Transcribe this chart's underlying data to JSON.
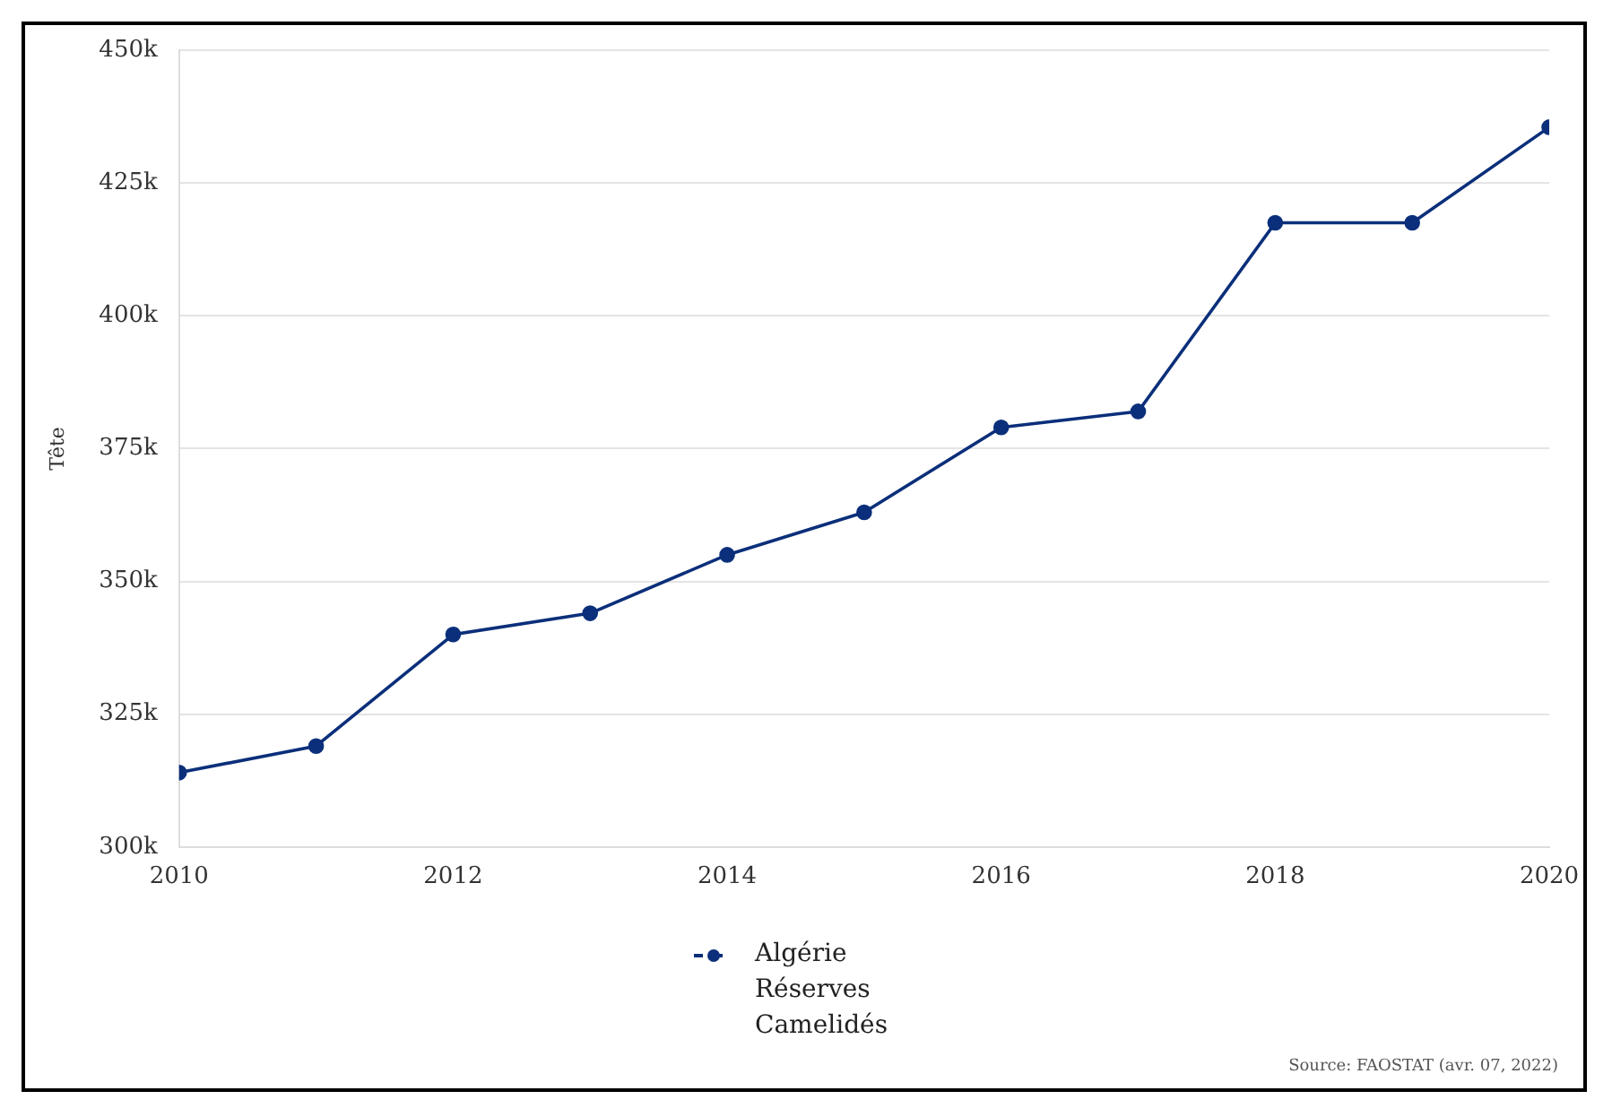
{
  "chart_data": {
    "type": "line",
    "ylabel": "Tête",
    "x": [
      2010,
      2011,
      2012,
      2013,
      2014,
      2015,
      2016,
      2017,
      2018,
      2019,
      2020
    ],
    "xlim": [
      2010,
      2020
    ],
    "xticks": [
      2010,
      2012,
      2014,
      2016,
      2018,
      2020
    ],
    "ylim": [
      300000,
      450000
    ],
    "yticks": [
      {
        "value": 300000,
        "label": "300k"
      },
      {
        "value": 325000,
        "label": "325k"
      },
      {
        "value": 350000,
        "label": "350k"
      },
      {
        "value": 375000,
        "label": "375k"
      },
      {
        "value": 400000,
        "label": "400k"
      },
      {
        "value": 425000,
        "label": "425k"
      },
      {
        "value": 450000,
        "label": "450k"
      }
    ],
    "series": [
      {
        "name": "Algérie Réserves Camelidés",
        "color": "#0b2f7a",
        "values": [
          314000,
          319000,
          340000,
          344000,
          355000,
          363000,
          379000,
          382000,
          417500,
          417500,
          435500
        ]
      }
    ],
    "grid": "y",
    "legend": "bottom",
    "marker": "circle",
    "line_style": "solid",
    "annotations": [
      "Source: FAOSTAT (avr. 07, 2022)"
    ]
  }
}
